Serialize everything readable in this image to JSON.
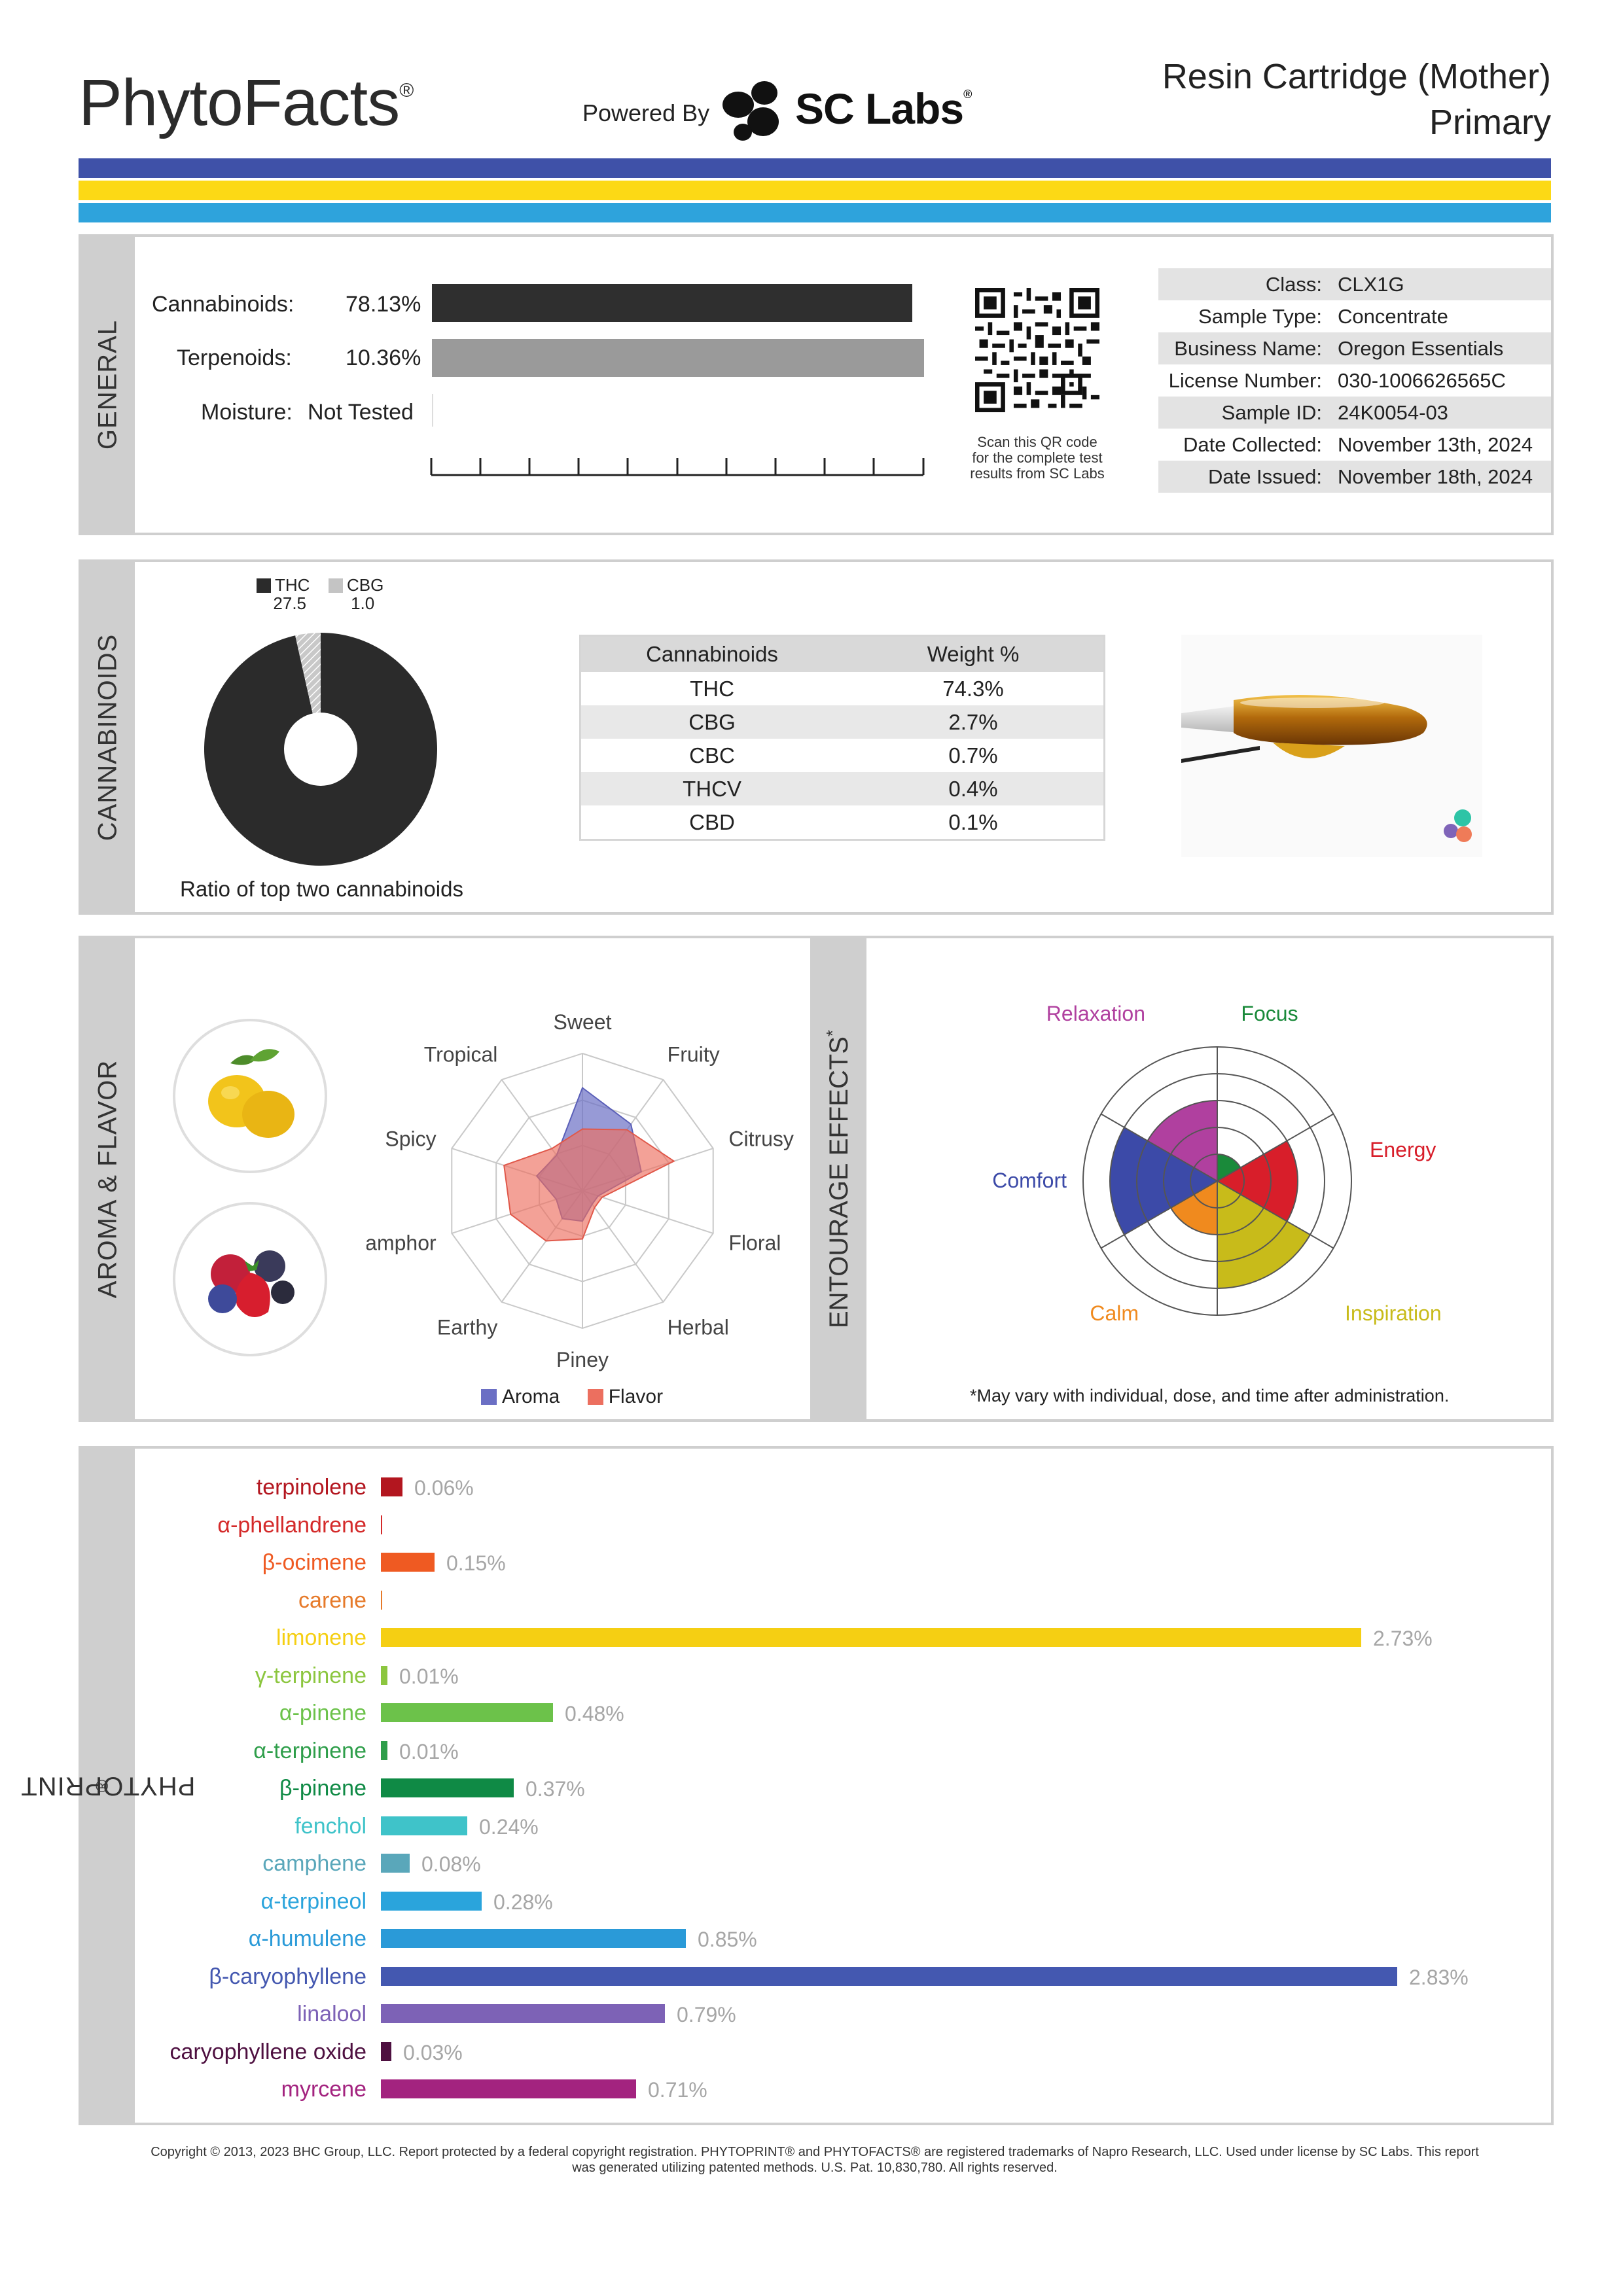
{
  "header": {
    "brand": "PhytoFacts",
    "brand_mark": "®",
    "powered_by": "Powered By",
    "lab_name": "SC Labs",
    "lab_mark": "®",
    "product_name": "Resin Cartridge (Mother)",
    "product_grade": "Primary",
    "stripe_colors": [
      "#3f51a8",
      "#fcd915",
      "#2ea3dc"
    ]
  },
  "general": {
    "section_label": "GENERAL",
    "cannabinoids_label": "Cannabinoids:",
    "cannabinoids_value": "78.13%",
    "cannabinoids_fraction": 0.7813,
    "terpenoids_label": "Terpenoids:",
    "terpenoids_value": "10.36%",
    "terpenoids_fraction": 0.1036,
    "moisture_label": "Moisture:",
    "moisture_value": "Not Tested",
    "qr_caption": [
      "Scan this QR code",
      "for the complete test",
      "results from SC Labs"
    ],
    "info": [
      {
        "key": "Class:",
        "value": "CLX1G"
      },
      {
        "key": "Sample Type:",
        "value": "Concentrate"
      },
      {
        "key": "Business Name:",
        "value": "Oregon Essentials"
      },
      {
        "key": "License Number:",
        "value": "030-1006626565C"
      },
      {
        "key": "Sample ID:",
        "value": "24K0054-03"
      },
      {
        "key": "Date Collected:",
        "value": "November 13th, 2024"
      },
      {
        "key": "Date Issued:",
        "value": "November 18th, 2024"
      }
    ]
  },
  "cannabinoids": {
    "section_label": "CANNABINOIDS",
    "legend": [
      {
        "name": "THC",
        "value": "27.5",
        "color": "#2b2b2b"
      },
      {
        "name": "CBG",
        "value": "1.0",
        "color": "#c4c4c4"
      }
    ],
    "ratio_caption": "Ratio of top two cannabinoids",
    "table_headers": [
      "Cannabinoids",
      "Weight %"
    ],
    "table_rows": [
      [
        "THC",
        "74.3%"
      ],
      [
        "CBG",
        "2.7%"
      ],
      [
        "CBC",
        "0.7%"
      ],
      [
        "THCV",
        "0.4%"
      ],
      [
        "CBD",
        "0.1%"
      ]
    ]
  },
  "aroma": {
    "section_label": "AROMA & FLAVOR",
    "fruit_icons": [
      "lemon-icon",
      "berries-icon"
    ],
    "axes": [
      "Sweet",
      "Fruity",
      "Citrusy",
      "Floral",
      "Herbal",
      "Piney",
      "Earthy",
      "Camphor",
      "Spicy",
      "Tropical"
    ],
    "legend_aroma": "Aroma",
    "legend_flavor": "Flavor",
    "aroma_color": "#6b6fc4",
    "flavor_color": "#ec6f5f",
    "aroma_values": [
      0.75,
      0.6,
      0.45,
      0.12,
      0.12,
      0.22,
      0.25,
      0.2,
      0.35,
      0.32
    ],
    "flavor_values": [
      0.45,
      0.55,
      0.7,
      0.15,
      0.15,
      0.35,
      0.45,
      0.55,
      0.6,
      0.38
    ]
  },
  "entourage": {
    "section_label": "ENTOURAGE EFFECTS",
    "section_mark": "*",
    "note": "*May vary with individual, dose, and time after administration.",
    "effects": [
      {
        "name": "Focus",
        "value": 0.2,
        "color": "#1a8a3a"
      },
      {
        "name": "Energy",
        "value": 0.6,
        "color": "#d81e2a"
      },
      {
        "name": "Inspiration",
        "value": 0.8,
        "color": "#c8bb1a"
      },
      {
        "name": "Calm",
        "value": 0.4,
        "color": "#f08a1e"
      },
      {
        "name": "Comfort",
        "value": 0.8,
        "color": "#3c4aa8"
      },
      {
        "name": "Relaxation",
        "value": 0.6,
        "color": "#b0409f"
      }
    ]
  },
  "phytoprint": {
    "section_label": "PHYTOPRINT",
    "section_mark": "®",
    "max_value": 2.83,
    "terpenes": [
      {
        "name": "terpinolene",
        "value": 0.06,
        "label": "0.06%",
        "color": "#b3161f"
      },
      {
        "name": "α-phellandrene",
        "value": 0.0,
        "label": "",
        "color": "#d42a2a"
      },
      {
        "name": "β-ocimene",
        "value": 0.15,
        "label": "0.15%",
        "color": "#ef5a22"
      },
      {
        "name": "carene",
        "value": 0.0,
        "label": "",
        "color": "#e67a2a"
      },
      {
        "name": "limonene",
        "value": 2.73,
        "label": "2.73%",
        "color": "#f5cf13"
      },
      {
        "name": "γ-terpinene",
        "value": 0.01,
        "label": "0.01%",
        "color": "#8cc63f"
      },
      {
        "name": "α-pinene",
        "value": 0.48,
        "label": "0.48%",
        "color": "#6cc24a"
      },
      {
        "name": "α-terpinene",
        "value": 0.01,
        "label": "0.01%",
        "color": "#2e9e4a"
      },
      {
        "name": "β-pinene",
        "value": 0.37,
        "label": "0.37%",
        "color": "#0f8a45"
      },
      {
        "name": "fenchol",
        "value": 0.24,
        "label": "0.24%",
        "color": "#3fc3c9"
      },
      {
        "name": "camphene",
        "value": 0.08,
        "label": "0.08%",
        "color": "#5aa7ba"
      },
      {
        "name": "α-terpineol",
        "value": 0.28,
        "label": "0.28%",
        "color": "#2aa4dc"
      },
      {
        "name": "α-humulene",
        "value": 0.85,
        "label": "0.85%",
        "color": "#2a9ad8"
      },
      {
        "name": "β-caryophyllene",
        "value": 2.83,
        "label": "2.83%",
        "color": "#4458b0"
      },
      {
        "name": "linalool",
        "value": 0.79,
        "label": "0.79%",
        "color": "#7d62b6"
      },
      {
        "name": "caryophyllene oxide",
        "value": 0.03,
        "label": "0.03%",
        "color": "#4e1040"
      },
      {
        "name": "myrcene",
        "value": 0.71,
        "label": "0.71%",
        "color": "#a3237f"
      }
    ]
  },
  "footer": {
    "copyright_line1": "Copyright © 2013, 2023 BHC Group, LLC. Report protected by a federal copyright registration. PHYTOPRINT® and PHYTOFACTS® are registered trademarks of Napro Research, LLC. Used under license by SC Labs. This report",
    "copyright_line2": "was generated utilizing patented methods. U.S. Pat. 10,830,780. All rights reserved."
  }
}
